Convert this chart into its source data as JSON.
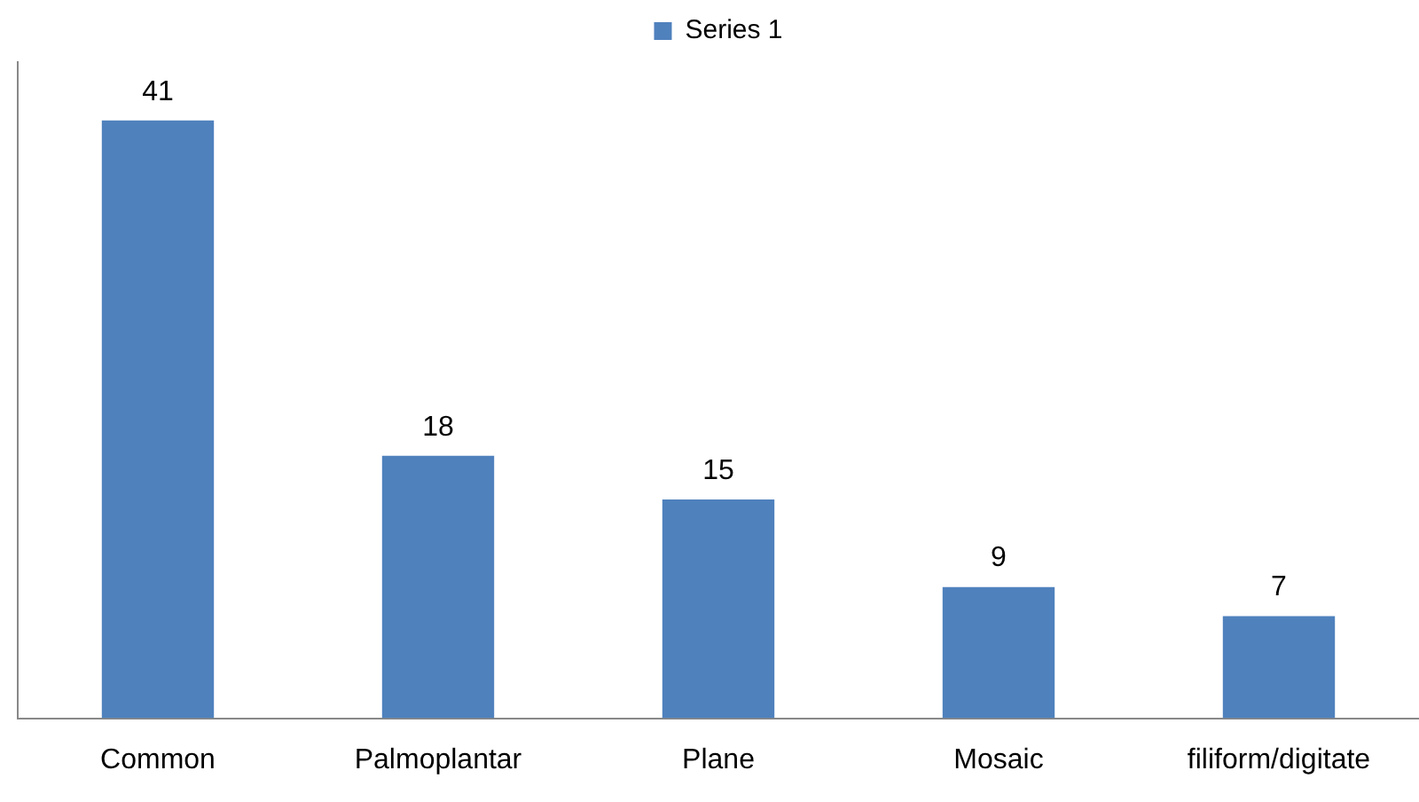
{
  "chart_data": {
    "type": "bar",
    "categories": [
      "Common",
      "Palmoplantar",
      "Plane",
      "Mosaic",
      "filiform/digitate"
    ],
    "series": [
      {
        "name": "Series 1",
        "color": "#4f81bd",
        "values": [
          41,
          18,
          15,
          9,
          7
        ]
      }
    ],
    "data_labels": true,
    "legend": "top",
    "grid": false,
    "tick_labels": "x"
  }
}
